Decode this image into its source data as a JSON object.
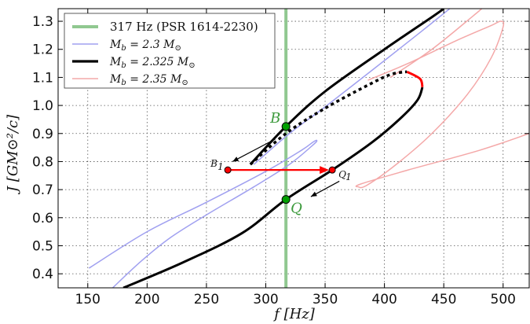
{
  "chart_data": {
    "type": "line",
    "xlabel": "f [Hz]",
    "ylabel": "J [GM⊙²/c]",
    "xlim": [
      125,
      522
    ],
    "ylim": [
      0.35,
      1.345
    ],
    "xticks": [
      "150",
      "200",
      "250",
      "300",
      "350",
      "400",
      "450",
      "500"
    ],
    "yticks": [
      "0.4",
      "0.5",
      "0.6",
      "0.7",
      "0.8",
      "0.9",
      "1.0",
      "1.1",
      "1.2",
      "1.3"
    ],
    "grid": true,
    "legend_position": "top-left",
    "vline": {
      "x": 317,
      "label": "317 Hz (PSR 1614-2230)",
      "color": "#90c890"
    },
    "series": [
      {
        "name": "M_b = 2.3 M⊙",
        "color": "#a0a0f0",
        "points": [
          [
            151,
            0.42
          ],
          [
            200,
            0.55
          ],
          [
            250,
            0.655
          ],
          [
            300,
            0.765
          ],
          [
            330,
            0.84
          ],
          [
            340,
            0.87
          ],
          [
            343,
            0.875
          ],
          [
            340,
            0.86
          ],
          [
            320,
            0.79
          ],
          [
            290,
            0.71
          ],
          [
            250,
            0.61
          ],
          [
            220,
            0.53
          ],
          [
            195,
            0.445
          ],
          [
            171,
            0.35
          ]
        ],
        "upper": [
          [
            290,
            0.79
          ],
          [
            320,
            0.9
          ],
          [
            350,
            0.995
          ],
          [
            400,
            1.16
          ],
          [
            430,
            1.26
          ],
          [
            455,
            1.345
          ]
        ]
      },
      {
        "name": "M_b = 2.325 M⊙",
        "color": "#000000",
        "lower": [
          [
            180,
            0.35
          ],
          [
            230,
            0.44
          ],
          [
            280,
            0.545
          ],
          [
            317,
            0.665
          ],
          [
            356,
            0.77
          ],
          [
            390,
            0.87
          ],
          [
            415,
            0.96
          ],
          [
            428,
            1.02
          ],
          [
            432,
            1.065
          ]
        ],
        "dotted": [
          [
            287,
            0.79
          ],
          [
            317,
            0.9
          ],
          [
            350,
            0.99
          ],
          [
            385,
            1.07
          ],
          [
            405,
            1.11
          ],
          [
            419,
            1.12
          ]
        ],
        "red_cap": [
          [
            419,
            1.12
          ],
          [
            430,
            1.095
          ],
          [
            432,
            1.065
          ]
        ],
        "upper": [
          [
            287,
            0.79
          ],
          [
            317,
            0.925
          ],
          [
            350,
            1.05
          ],
          [
            400,
            1.2
          ],
          [
            440,
            1.315
          ],
          [
            450,
            1.345
          ]
        ]
      },
      {
        "name": "M_b = 2.35 M⊙",
        "color": "#f4a8a8",
        "points": [
          [
            386,
            1.09
          ],
          [
            420,
            1.15
          ],
          [
            460,
            1.23
          ],
          [
            490,
            1.285
          ],
          [
            498,
            1.3
          ],
          [
            500,
            1.28
          ],
          [
            490,
            1.17
          ],
          [
            470,
            1.04
          ],
          [
            440,
            0.9
          ],
          [
            410,
            0.79
          ],
          [
            385,
            0.715
          ],
          [
            378,
            0.71
          ],
          [
            380,
            0.72
          ],
          [
            420,
            0.77
          ],
          [
            480,
            0.84
          ],
          [
            522,
            0.9
          ]
        ],
        "upper": [
          [
            405,
            1.1
          ],
          [
            440,
            1.2
          ],
          [
            475,
            1.32
          ],
          [
            482,
            1.345
          ]
        ]
      }
    ],
    "markers": [
      {
        "x": 317,
        "y": 0.925,
        "color": "#00a000",
        "label": "B"
      },
      {
        "x": 317,
        "y": 0.665,
        "color": "#00a000",
        "label": "Q"
      },
      {
        "x": 268,
        "y": 0.77,
        "color": "#ff0000",
        "label": "B₁"
      },
      {
        "x": 356,
        "y": 0.77,
        "color": "#ff0000",
        "label": "Q₁"
      }
    ],
    "legend": [
      "317 Hz (PSR 1614-2230)",
      "M_b = 2.3 M⊙",
      "M_b = 2.325 M⊙",
      "M_b = 2.35 M⊙"
    ]
  },
  "labels": {
    "B": "B",
    "Q": "Q",
    "B1": "B",
    "B1_sub": "1",
    "Q1": "Q",
    "Q1_sub": "1",
    "legend_vline": "317 Hz (PSR 1614-2230)",
    "legend_23": "M  = 2.3 M",
    "legend_2325": "M  = 2.325 M",
    "legend_235": "M  = 2.35 M"
  }
}
